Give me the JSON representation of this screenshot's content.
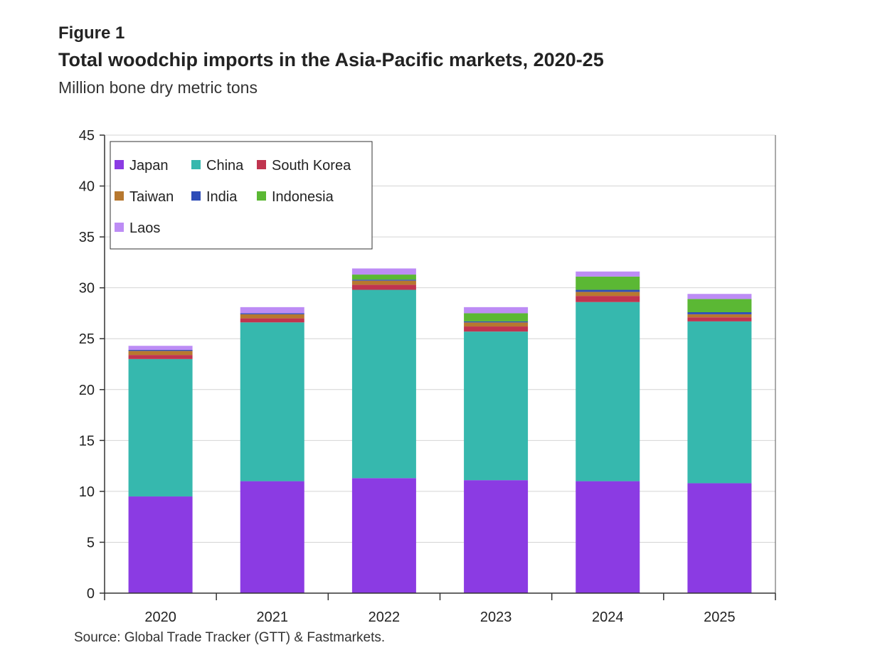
{
  "figure": {
    "label": "Figure 1",
    "title": "Total woodchip imports in the Asia-Pacific markets, 2020-25",
    "subtitle": "Million bone dry metric tons",
    "source": "Source: Global Trade Tracker (GTT) & Fastmarkets."
  },
  "chart_data": {
    "type": "bar",
    "stacked": true,
    "categories": [
      "2020",
      "2021",
      "2022",
      "2023",
      "2024",
      "2025"
    ],
    "ylim": [
      0,
      45
    ],
    "yticks": [
      0,
      5,
      10,
      15,
      20,
      25,
      30,
      35,
      40,
      45
    ],
    "grid": true,
    "legend_position": "top-left",
    "series": [
      {
        "name": "Japan",
        "color": "#8B3BE3",
        "values": [
          9.5,
          11.0,
          11.3,
          11.1,
          11.0,
          10.8
        ]
      },
      {
        "name": "China",
        "color": "#36B8AE",
        "values": [
          13.5,
          15.6,
          18.5,
          14.6,
          17.6,
          15.9
        ]
      },
      {
        "name": "South Korea",
        "color": "#C0344F",
        "values": [
          0.4,
          0.4,
          0.5,
          0.5,
          0.6,
          0.4
        ]
      },
      {
        "name": "Taiwan",
        "color": "#B7782F",
        "values": [
          0.4,
          0.4,
          0.4,
          0.4,
          0.4,
          0.3
        ]
      },
      {
        "name": "India",
        "color": "#2E4DB8",
        "values": [
          0.1,
          0.1,
          0.1,
          0.1,
          0.2,
          0.2
        ]
      },
      {
        "name": "Indonesia",
        "color": "#5BB834",
        "values": [
          0.0,
          0.0,
          0.5,
          0.8,
          1.3,
          1.3
        ]
      },
      {
        "name": "Laos",
        "color": "#BD8CF5",
        "values": [
          0.4,
          0.6,
          0.6,
          0.6,
          0.5,
          0.5
        ]
      }
    ]
  }
}
